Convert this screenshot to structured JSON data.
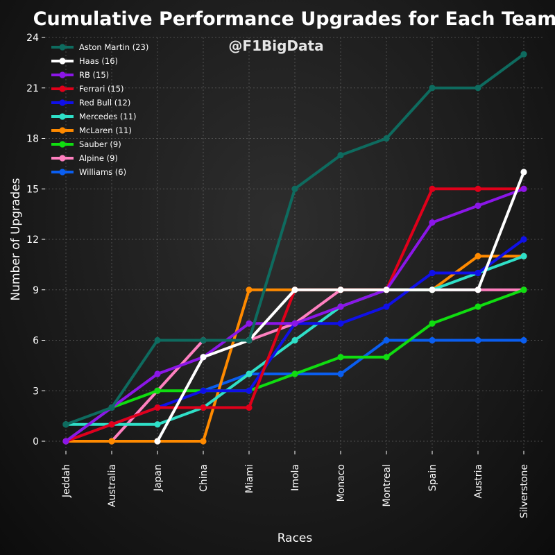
{
  "chart_data": {
    "type": "line",
    "title": "Cumulative Performance Upgrades for Each Team",
    "watermark": "@F1BigData",
    "xlabel": "Races",
    "ylabel": "Number of Upgrades",
    "ylim": [
      0,
      24
    ],
    "yticks": [
      0,
      3,
      6,
      9,
      12,
      15,
      18,
      21,
      24
    ],
    "grid": true,
    "legend_position": "top-left",
    "categories": [
      "Jeddah",
      "Australia",
      "Japan",
      "China",
      "Miami",
      "Imola",
      "Monaco",
      "Montreal",
      "Spain",
      "Austria",
      "Silverstone"
    ],
    "series": [
      {
        "name": "Aston Martin (23)",
        "color": "#0e6b5f",
        "values": [
          1,
          2,
          6,
          6,
          6,
          15,
          17,
          18,
          21,
          21,
          23
        ]
      },
      {
        "name": "Haas (16)",
        "color": "#ffffff",
        "values": [
          null,
          null,
          0,
          5,
          6,
          9,
          9,
          9,
          9,
          9,
          16
        ]
      },
      {
        "name": "RB (15)",
        "color": "#8b16e8",
        "values": [
          0,
          2,
          4,
          5,
          7,
          7,
          8,
          9,
          13,
          14,
          15
        ]
      },
      {
        "name": "Ferrari (15)",
        "color": "#e0001a",
        "values": [
          0,
          1,
          2,
          2,
          2,
          9,
          9,
          9,
          15,
          15,
          15
        ]
      },
      {
        "name": "Red Bull (12)",
        "color": "#1010e8",
        "values": [
          0,
          1,
          2,
          3,
          3,
          7,
          7,
          8,
          10,
          10,
          12
        ]
      },
      {
        "name": "Mercedes (11)",
        "color": "#2fe0c8",
        "values": [
          1,
          1,
          1,
          2,
          4,
          6,
          8,
          9,
          9,
          10,
          11
        ]
      },
      {
        "name": "McLaren (11)",
        "color": "#ff8a00",
        "values": [
          0,
          0,
          0,
          0,
          9,
          9,
          9,
          9,
          9,
          11,
          11
        ]
      },
      {
        "name": "Sauber (9)",
        "color": "#10dd10",
        "values": [
          0,
          2,
          3,
          3,
          3,
          4,
          5,
          5,
          7,
          8,
          9
        ]
      },
      {
        "name": "Alpine (9)",
        "color": "#ff80c0",
        "values": [
          0,
          0,
          3,
          6,
          6,
          7,
          9,
          9,
          9,
          9,
          9
        ]
      },
      {
        "name": "Williams (6)",
        "color": "#0a5ef0",
        "values": [
          null,
          null,
          null,
          3,
          4,
          4,
          4,
          6,
          6,
          6,
          6
        ]
      }
    ]
  }
}
